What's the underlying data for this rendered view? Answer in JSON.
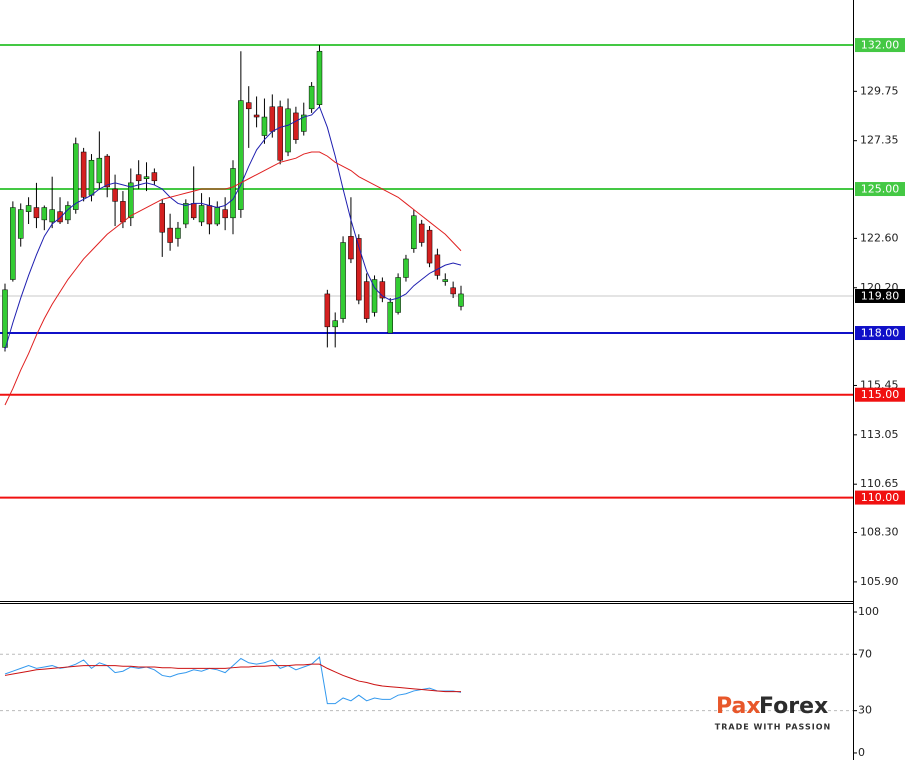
{
  "chart_data": [
    {
      "type": "candlestick",
      "open": [
        117.3,
        120.6,
        122.6,
        123.9,
        124.1,
        123.5,
        123.4,
        123.9,
        123.5,
        124.0,
        126.8,
        124.7,
        125.3,
        126.6,
        125.0,
        124.4,
        123.6,
        125.7,
        125.5,
        125.8,
        124.3,
        123.1,
        122.6,
        123.3,
        124.3,
        123.4,
        124.2,
        123.3,
        124.0,
        123.6,
        124.0,
        129.2,
        128.6,
        127.6,
        129.0,
        129.0,
        126.8,
        128.7,
        127.8,
        128.9,
        129.1,
        119.9,
        118.3,
        118.7,
        122.7,
        122.6,
        120.5,
        119.0,
        120.5,
        118.0,
        119.0,
        120.7,
        122.1,
        123.3,
        123.0,
        121.8,
        120.5,
        120.2,
        119.3
      ],
      "high": [
        120.4,
        124.4,
        124.3,
        124.6,
        125.3,
        124.2,
        125.6,
        124.6,
        124.4,
        127.5,
        127.0,
        126.7,
        127.8,
        126.7,
        125.7,
        124.9,
        126.0,
        126.4,
        126.3,
        126.0,
        124.5,
        123.8,
        123.4,
        124.5,
        126.1,
        124.8,
        124.6,
        124.4,
        124.6,
        126.4,
        131.7,
        130.0,
        129.5,
        129.4,
        129.6,
        129.3,
        129.4,
        129.0,
        129.2,
        130.2,
        132.0,
        120.1,
        119.0,
        122.7,
        124.6,
        122.8,
        120.9,
        120.8,
        120.7,
        119.7,
        120.9,
        121.8,
        124.0,
        123.5,
        123.2,
        122.1,
        120.9,
        120.5,
        120.3
      ],
      "low": [
        117.1,
        120.5,
        122.2,
        123.3,
        123.1,
        123.0,
        123.1,
        123.3,
        123.3,
        123.8,
        124.4,
        124.4,
        125.0,
        124.6,
        123.2,
        123.1,
        123.2,
        125.0,
        124.9,
        125.2,
        121.7,
        122.0,
        122.2,
        123.1,
        123.5,
        123.2,
        122.8,
        123.2,
        123.0,
        122.8,
        123.6,
        127.0,
        128.0,
        127.2,
        127.5,
        126.2,
        126.6,
        127.2,
        127.6,
        128.7,
        129.0,
        117.3,
        117.3,
        118.5,
        121.4,
        119.4,
        118.5,
        118.8,
        119.5,
        118.0,
        118.9,
        120.5,
        121.9,
        122.2,
        121.2,
        120.6,
        120.3,
        119.7,
        119.1
      ],
      "close": [
        120.1,
        124.1,
        124.0,
        124.2,
        123.6,
        124.1,
        124.0,
        123.4,
        124.2,
        127.2,
        124.6,
        126.4,
        126.5,
        125.1,
        124.4,
        123.4,
        125.3,
        125.4,
        125.6,
        125.4,
        122.9,
        122.4,
        123.1,
        124.3,
        123.6,
        124.2,
        123.3,
        124.1,
        123.6,
        126.0,
        129.3,
        128.9,
        128.5,
        128.5,
        127.8,
        126.4,
        128.9,
        127.4,
        128.6,
        130.0,
        131.7,
        118.3,
        118.6,
        122.4,
        121.6,
        119.6,
        118.7,
        120.6,
        119.7,
        119.5,
        120.7,
        121.6,
        123.7,
        122.4,
        121.4,
        120.8,
        120.6,
        119.9,
        119.9
      ],
      "up_color": "#33cc33",
      "down_color": "#d42020",
      "overlays": [
        {
          "color": "#1f1fb0",
          "values": [
            117.2,
            118.5,
            119.7,
            120.8,
            121.8,
            122.7,
            123.3,
            123.6,
            124.0,
            124.3,
            124.5,
            124.7,
            125.0,
            125.2,
            125.3,
            125.2,
            125.1,
            125.2,
            125.3,
            125.2,
            125.0,
            124.6,
            124.3,
            124.2,
            124.3,
            124.3,
            124.2,
            124.1,
            124.2,
            124.5,
            125.2,
            126.1,
            126.9,
            127.4,
            127.8,
            128.0,
            128.1,
            128.3,
            128.5,
            128.6,
            129.0,
            128.0,
            126.6,
            125.0,
            123.5,
            122.2,
            121.0,
            120.2,
            119.8,
            119.6,
            119.7,
            119.9,
            120.3,
            120.6,
            120.9,
            121.1,
            121.3,
            121.4,
            121.3
          ]
        },
        {
          "color": "#e02020",
          "values": [
            114.5,
            115.3,
            116.2,
            117.0,
            117.9,
            118.7,
            119.4,
            120.0,
            120.6,
            121.1,
            121.6,
            122.0,
            122.4,
            122.8,
            123.1,
            123.4,
            123.7,
            123.9,
            124.1,
            124.3,
            124.5,
            124.6,
            124.7,
            124.8,
            124.9,
            125.0,
            125.0,
            125.0,
            125.0,
            125.1,
            125.3,
            125.5,
            125.7,
            125.9,
            126.1,
            126.3,
            126.4,
            126.5,
            126.7,
            126.8,
            126.8,
            126.6,
            126.3,
            126.1,
            125.9,
            125.6,
            125.4,
            125.2,
            125.0,
            124.8,
            124.6,
            124.3,
            124.0,
            123.7,
            123.4,
            123.1,
            122.8,
            122.4,
            122.0
          ]
        }
      ],
      "ylim": [
        105.02,
        134.19
      ],
      "yticks": [
        129.75,
        127.35,
        {
          "value": 122.6,
          "label": "122.60"
        },
        {
          "value": 120.2,
          "label": "120.20"
        },
        115.45,
        113.05,
        110.65,
        {
          "value": 108.3,
          "label": "108.30"
        },
        {
          "value": 105.9,
          "label": "105.90"
        }
      ],
      "levels": [
        {
          "value": 132,
          "label": "132.00",
          "color": "#44c844"
        },
        {
          "value": 125,
          "label": "125.00",
          "color": "#44c844"
        },
        {
          "value": 118,
          "label": "118.00",
          "color": "#1010c8"
        },
        {
          "value": 115,
          "label": "115.00",
          "color": "#f01010"
        },
        {
          "value": 110,
          "label": "110.00",
          "color": "#f01010"
        }
      ],
      "current": {
        "value": 119.8,
        "label": "119.80",
        "color": "#000000"
      }
    },
    {
      "type": "line",
      "series": [
        {
          "color": "#3399ee",
          "values": [
            56,
            58,
            60,
            62,
            60,
            61,
            62,
            60,
            61,
            63,
            66,
            60,
            64,
            62,
            57,
            58,
            61,
            60,
            61,
            59,
            55,
            54,
            56,
            57,
            59,
            58,
            60,
            59,
            57,
            62,
            67,
            64,
            63,
            64,
            66,
            60,
            62,
            59,
            61,
            63,
            68,
            35,
            35,
            39,
            37,
            41,
            37,
            39,
            38,
            38,
            41,
            42,
            44,
            45,
            46,
            44,
            44,
            44,
            43
          ]
        },
        {
          "color": "#cc1111",
          "values": [
            55,
            56,
            57,
            58,
            59,
            59.5,
            60,
            60.5,
            61,
            61.5,
            62,
            62,
            62,
            62,
            62,
            61.5,
            61.5,
            61,
            61,
            61,
            60.5,
            60.5,
            60,
            60,
            60,
            60,
            60,
            60,
            60,
            60.5,
            61,
            61,
            61.5,
            61.5,
            62,
            62,
            62,
            62.5,
            62.5,
            63,
            63,
            60,
            57.5,
            55,
            53,
            51,
            50,
            48.5,
            47.5,
            47,
            46.5,
            46,
            45.5,
            45,
            44.5,
            44,
            43.5,
            43.5,
            43.5
          ]
        }
      ],
      "ylim": [
        -5,
        106.4
      ],
      "yticks": [
        100,
        70,
        30,
        0
      ],
      "dashed_grid": [
        70,
        30
      ]
    }
  ],
  "logo": {
    "first": "Pax",
    "second": "Forex",
    "tagline": "TRADE WITH PASSION"
  }
}
